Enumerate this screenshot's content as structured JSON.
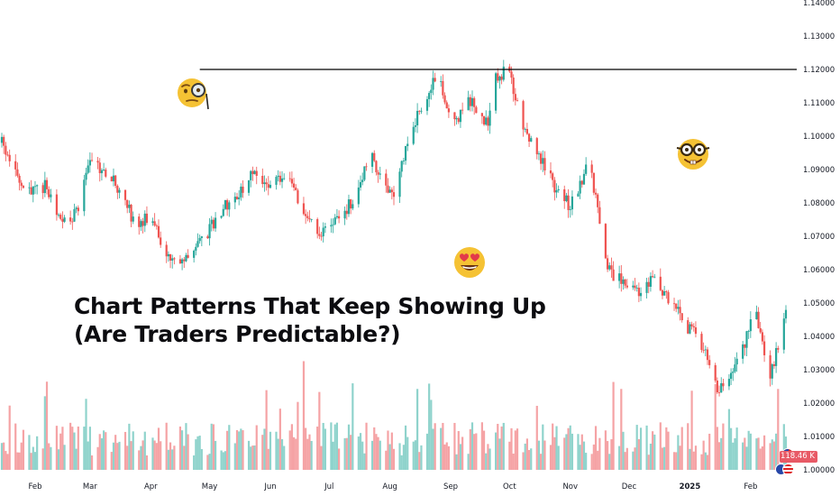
{
  "chart_data": {
    "type": "candlestick",
    "symbol_timeframe": "daily",
    "title": "Chart Patterns That Keep Showing Up",
    "subtitle": "(Are Traders Predictable?)",
    "ylim": [
      1.0,
      1.14
    ],
    "price_ticks": [
      "1.00000",
      "1.01000",
      "1.02000",
      "1.03000",
      "1.04000",
      "1.05000",
      "1.06000",
      "1.07000",
      "1.08000",
      "1.09000",
      "1.10000",
      "1.11000",
      "1.12000",
      "1.13000",
      "1.14000"
    ],
    "time_ticks": [
      {
        "label": "Feb",
        "day": 31,
        "bold": false
      },
      {
        "label": "Mar",
        "day": 59,
        "bold": false
      },
      {
        "label": "Apr",
        "day": 90,
        "bold": false
      },
      {
        "label": "May",
        "day": 120,
        "bold": false
      },
      {
        "label": "Jun",
        "day": 151,
        "bold": false
      },
      {
        "label": "Jul",
        "day": 181,
        "bold": false
      },
      {
        "label": "Aug",
        "day": 212,
        "bold": false
      },
      {
        "label": "Sep",
        "day": 243,
        "bold": false
      },
      {
        "label": "Oct",
        "day": 273,
        "bold": false
      },
      {
        "label": "Nov",
        "day": 304,
        "bold": false
      },
      {
        "label": "Dec",
        "day": 334,
        "bold": false
      },
      {
        "label": "2025",
        "day": 365,
        "bold": true
      },
      {
        "label": "Feb",
        "day": 396,
        "bold": false
      }
    ],
    "x_range_days": [
      14,
      414
    ],
    "resistance_line": {
      "price": 1.12,
      "from_day": 115,
      "to_day": 414
    },
    "price_path": [
      [
        14,
        1.098
      ],
      [
        22,
        1.087
      ],
      [
        28,
        1.083
      ],
      [
        36,
        1.085
      ],
      [
        42,
        1.077
      ],
      [
        48,
        1.074
      ],
      [
        54,
        1.079
      ],
      [
        58,
        1.093
      ],
      [
        64,
        1.09
      ],
      [
        70,
        1.087
      ],
      [
        76,
        1.083
      ],
      [
        82,
        1.073
      ],
      [
        90,
        1.076
      ],
      [
        98,
        1.064
      ],
      [
        104,
        1.061
      ],
      [
        112,
        1.067
      ],
      [
        120,
        1.072
      ],
      [
        126,
        1.078
      ],
      [
        134,
        1.082
      ],
      [
        142,
        1.09
      ],
      [
        148,
        1.086
      ],
      [
        154,
        1.087
      ],
      [
        160,
        1.09
      ],
      [
        166,
        1.079
      ],
      [
        174,
        1.072
      ],
      [
        180,
        1.071
      ],
      [
        186,
        1.075
      ],
      [
        194,
        1.082
      ],
      [
        202,
        1.094
      ],
      [
        208,
        1.088
      ],
      [
        214,
        1.08
      ],
      [
        220,
        1.097
      ],
      [
        228,
        1.109
      ],
      [
        236,
        1.118
      ],
      [
        240,
        1.111
      ],
      [
        246,
        1.104
      ],
      [
        252,
        1.111
      ],
      [
        258,
        1.107
      ],
      [
        262,
        1.103
      ],
      [
        266,
        1.117
      ],
      [
        272,
        1.12
      ],
      [
        276,
        1.112
      ],
      [
        282,
        1.1
      ],
      [
        290,
        1.092
      ],
      [
        296,
        1.085
      ],
      [
        304,
        1.079
      ],
      [
        308,
        1.084
      ],
      [
        314,
        1.093
      ],
      [
        318,
        1.077
      ],
      [
        322,
        1.062
      ],
      [
        326,
        1.057
      ],
      [
        332,
        1.057
      ],
      [
        340,
        1.053
      ],
      [
        346,
        1.057
      ],
      [
        352,
        1.052
      ],
      [
        358,
        1.049
      ],
      [
        362,
        1.041
      ],
      [
        366,
        1.043
      ],
      [
        372,
        1.036
      ],
      [
        378,
        1.025
      ],
      [
        382,
        1.024
      ],
      [
        388,
        1.03
      ],
      [
        394,
        1.04
      ],
      [
        398,
        1.048
      ],
      [
        402,
        1.04
      ],
      [
        404,
        1.025
      ],
      [
        408,
        1.033
      ],
      [
        412,
        1.043
      ],
      [
        414,
        1.049
      ]
    ],
    "volume_scale_max": 36,
    "last_volume_label": "118.46 K",
    "colors": {
      "up": "#26a69a",
      "down": "#ef5350",
      "up_volume": "#8fd3cc",
      "down_volume": "#f5a3a5",
      "grid": "#ffffff",
      "line": "#000000",
      "axis_text": "#131722"
    }
  },
  "annotations": {
    "monocle_face": "monocle-face-emoji",
    "heart_eyes_face": "heart-eyes-emoji",
    "nerd_face": "nerd-face-emoji"
  }
}
